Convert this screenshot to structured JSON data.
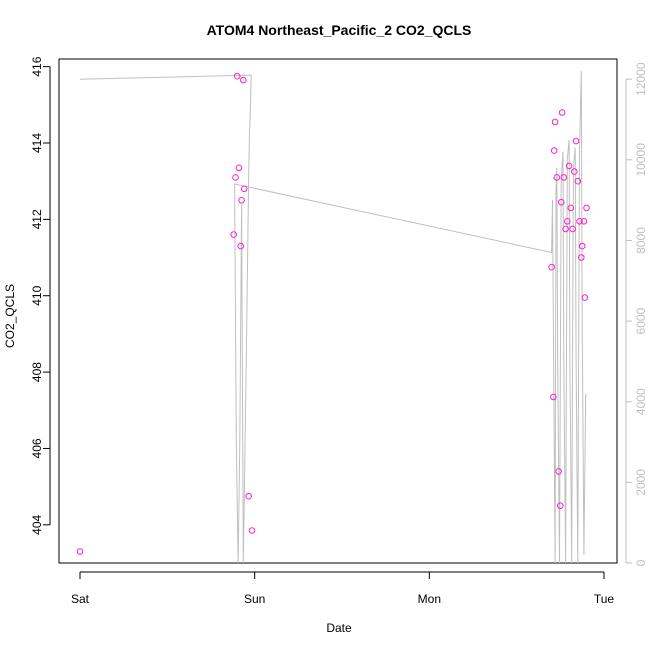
{
  "chart_data": {
    "type": "scatter",
    "title": "ATOM4 Northeast_Pacific_2 CO2_QCLS",
    "xlabel": "Date",
    "ylabel": "CO2_QCLS",
    "x_ticks": [
      "Sat",
      "Sun",
      "Mon",
      "Tue"
    ],
    "y_ticks": [
      "404",
      "406",
      "408",
      "410",
      "412",
      "414",
      "416"
    ],
    "y2_ticks": [
      "0",
      "2000",
      "4000",
      "6000",
      "8000",
      "10000",
      "12000"
    ],
    "x_range_days": [
      0.0,
      3.0
    ],
    "ylim": [
      403.0,
      416.2
    ],
    "y2lim": [
      0,
      12500
    ],
    "grid": false,
    "colors": {
      "points": "#ff1fc8",
      "line": "#bfbfbf",
      "axis": "#000000",
      "axis_right": "#bfbfbf"
    },
    "series": [
      {
        "type": "scatter",
        "axis": "left",
        "points": [
          {
            "x": 0.0,
            "y": 403.3
          },
          {
            "x": 0.88,
            "y": 411.6
          },
          {
            "x": 0.89,
            "y": 413.1
          },
          {
            "x": 0.9,
            "y": 415.75
          },
          {
            "x": 0.91,
            "y": 413.35
          },
          {
            "x": 0.92,
            "y": 411.3
          },
          {
            "x": 0.925,
            "y": 412.5
          },
          {
            "x": 0.935,
            "y": 415.65
          },
          {
            "x": 0.94,
            "y": 412.8
          },
          {
            "x": 0.965,
            "y": 404.75
          },
          {
            "x": 0.985,
            "y": 403.85
          },
          {
            "x": 2.7,
            "y": 410.75
          },
          {
            "x": 2.71,
            "y": 407.35
          },
          {
            "x": 2.715,
            "y": 413.8
          },
          {
            "x": 2.72,
            "y": 414.55
          },
          {
            "x": 2.73,
            "y": 413.1
          },
          {
            "x": 2.74,
            "y": 405.4
          },
          {
            "x": 2.75,
            "y": 404.5
          },
          {
            "x": 2.755,
            "y": 412.45
          },
          {
            "x": 2.76,
            "y": 414.8
          },
          {
            "x": 2.77,
            "y": 413.1
          },
          {
            "x": 2.78,
            "y": 411.75
          },
          {
            "x": 2.79,
            "y": 411.95
          },
          {
            "x": 2.8,
            "y": 413.4
          },
          {
            "x": 2.81,
            "y": 412.3
          },
          {
            "x": 2.82,
            "y": 411.75
          },
          {
            "x": 2.83,
            "y": 413.25
          },
          {
            "x": 2.84,
            "y": 414.05
          },
          {
            "x": 2.85,
            "y": 413.0
          },
          {
            "x": 2.86,
            "y": 411.95
          },
          {
            "x": 2.87,
            "y": 411.0
          },
          {
            "x": 2.875,
            "y": 411.3
          },
          {
            "x": 2.885,
            "y": 411.95
          },
          {
            "x": 2.89,
            "y": 409.95
          },
          {
            "x": 2.9,
            "y": 412.3
          }
        ]
      },
      {
        "type": "line",
        "axis": "right",
        "points": [
          {
            "x": 0.0,
            "y": 12000
          },
          {
            "x": 0.98,
            "y": 12100
          },
          {
            "x": 0.975,
            "y": 11200
          },
          {
            "x": 0.97,
            "y": 10600
          },
          {
            "x": 0.965,
            "y": 9500
          },
          {
            "x": 0.955,
            "y": 6000
          },
          {
            "x": 0.945,
            "y": 3000
          },
          {
            "x": 0.935,
            "y": 0
          },
          {
            "x": 0.925,
            "y": 8900
          },
          {
            "x": 0.92,
            "y": 6000
          },
          {
            "x": 0.915,
            "y": 3000
          },
          {
            "x": 0.905,
            "y": 0
          },
          {
            "x": 0.895,
            "y": 3000
          },
          {
            "x": 0.885,
            "y": 9400
          },
          {
            "x": 0.885,
            "y": 9400
          },
          {
            "x": 2.7,
            "y": 7700
          },
          {
            "x": 2.705,
            "y": 9000
          },
          {
            "x": 2.715,
            "y": 3000
          },
          {
            "x": 2.72,
            "y": 0
          },
          {
            "x": 2.725,
            "y": 9200
          },
          {
            "x": 2.73,
            "y": 9800
          },
          {
            "x": 2.735,
            "y": 5000
          },
          {
            "x": 2.745,
            "y": 0
          },
          {
            "x": 2.755,
            "y": 9500
          },
          {
            "x": 2.765,
            "y": 10200
          },
          {
            "x": 2.77,
            "y": 5000
          },
          {
            "x": 2.78,
            "y": 0
          },
          {
            "x": 2.79,
            "y": 10000
          },
          {
            "x": 2.8,
            "y": 10500
          },
          {
            "x": 2.805,
            "y": 5000
          },
          {
            "x": 2.815,
            "y": 0
          },
          {
            "x": 2.825,
            "y": 9800
          },
          {
            "x": 2.835,
            "y": 10300
          },
          {
            "x": 2.84,
            "y": 5000
          },
          {
            "x": 2.85,
            "y": 0
          },
          {
            "x": 2.86,
            "y": 10200
          },
          {
            "x": 2.87,
            "y": 12200
          },
          {
            "x": 2.875,
            "y": 6000
          },
          {
            "x": 2.885,
            "y": 200
          },
          {
            "x": 2.895,
            "y": 4200
          }
        ]
      }
    ]
  }
}
